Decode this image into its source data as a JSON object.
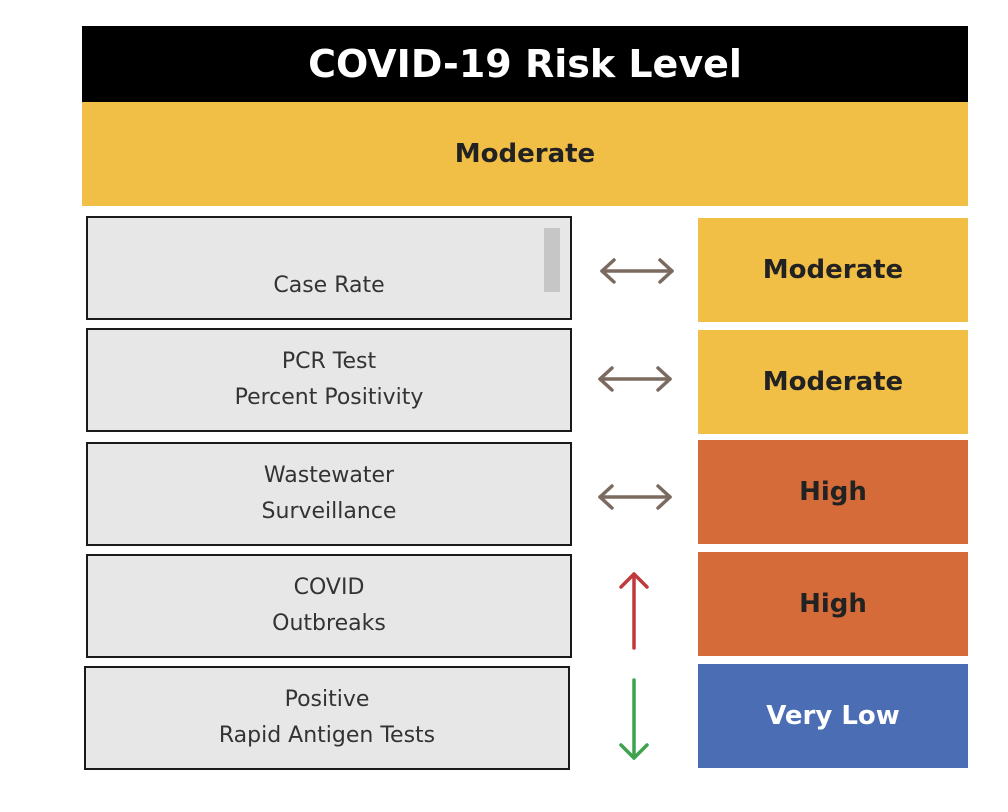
{
  "title": "COVID-19 Risk Level",
  "overall": {
    "level": "Moderate",
    "color": "#f2bf46"
  },
  "indicators": [
    {
      "lines": [
        "Case Rate"
      ],
      "trend": "stable",
      "trend_icon": "double-arrow-horizontal-icon",
      "trend_color": "#7a6a60",
      "level": "Moderate",
      "level_color": "#f2bf46",
      "level_text_color": "#222222"
    },
    {
      "lines": [
        "PCR Test",
        "Percent Positivity"
      ],
      "trend": "stable",
      "trend_icon": "double-arrow-horizontal-icon",
      "trend_color": "#7a6a60",
      "level": "Moderate",
      "level_color": "#f2bf46",
      "level_text_color": "#222222"
    },
    {
      "lines": [
        "Wastewater",
        "Surveillance"
      ],
      "trend": "stable",
      "trend_icon": "double-arrow-horizontal-icon",
      "trend_color": "#7a6a60",
      "level": "High",
      "level_color": "#d56b38",
      "level_text_color": "#222222"
    },
    {
      "lines": [
        "COVID",
        "Outbreaks"
      ],
      "trend": "increasing",
      "trend_icon": "arrow-up-icon",
      "trend_color": "#c0393d",
      "level": "High",
      "level_color": "#d56b38",
      "level_text_color": "#222222"
    },
    {
      "lines": [
        "Positive",
        "Rapid Antigen Tests"
      ],
      "trend": "decreasing",
      "trend_icon": "arrow-down-icon",
      "trend_color": "#3fa34d",
      "level": "Very Low",
      "level_color": "#4a6db3",
      "level_text_color": "#ffffff"
    }
  ]
}
